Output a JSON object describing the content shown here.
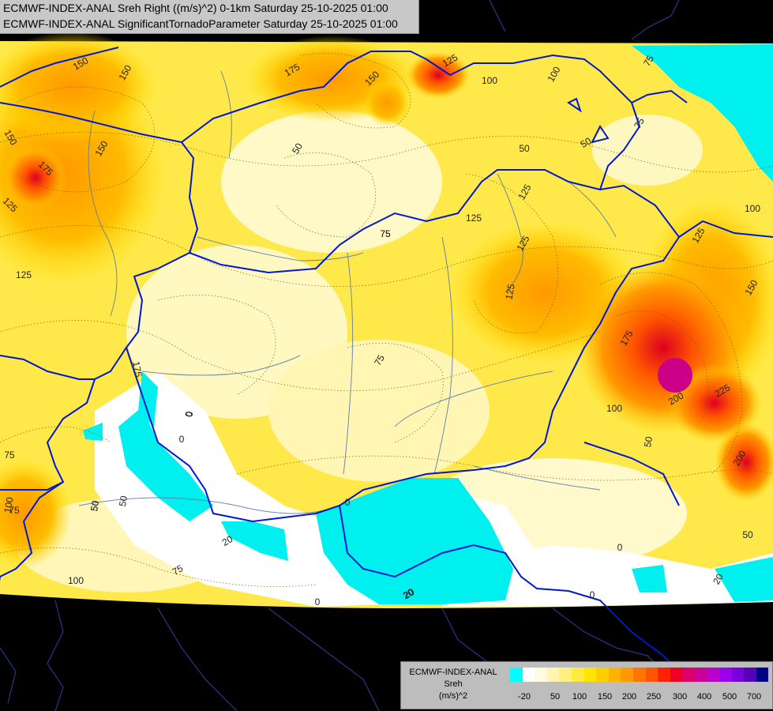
{
  "header": {
    "line1": "ECMWF-INDEX-ANAL Sreh Right ((m/s)^2) 0-1km Saturday 25-10-2025 01:00",
    "line2": "ECMWF-INDEX-ANAL SignificantTornadoParameter Saturday 25-10-2025 01:00"
  },
  "legend": {
    "title_line1": "ECMWF-INDEX-ANAL",
    "title_line2": "Sreh",
    "title_line3": "(m/s)^2",
    "colors": [
      "#00ffff",
      "#ffffff",
      "#fffbe0",
      "#fff5b0",
      "#fff080",
      "#ffea40",
      "#ffe400",
      "#ffcc00",
      "#ffb300",
      "#ff9900",
      "#ff7700",
      "#ff5500",
      "#ff2200",
      "#ee0022",
      "#dd0066",
      "#cc0099",
      "#bb00cc",
      "#9900ee",
      "#7700dd",
      "#5500bb",
      "#000088"
    ],
    "ticks": [
      "-20",
      "50",
      "100",
      "150",
      "200",
      "250",
      "300",
      "400",
      "500",
      "700"
    ]
  },
  "contour_labels": [
    "150",
    "150",
    "150",
    "175",
    "150",
    "125",
    "100",
    "100",
    "75",
    "50",
    "50",
    "50",
    "175",
    "125",
    "125",
    "150",
    "175",
    "50",
    "75",
    "125",
    "125",
    "125",
    "75",
    "75",
    "100",
    "150",
    "125",
    "175",
    "200",
    "225",
    "200",
    "100",
    "50",
    "0",
    "75",
    "0",
    "75",
    "100",
    "50",
    "75",
    "100",
    "20",
    "20",
    "0",
    "0",
    "50",
    "0",
    "20",
    "0",
    "20",
    "125",
    "75",
    "0",
    "50"
  ]
}
